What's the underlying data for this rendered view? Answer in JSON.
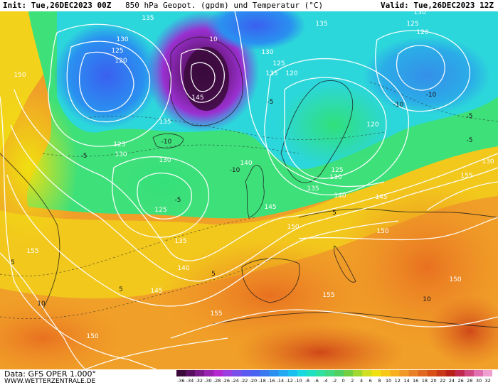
{
  "header": {
    "init": "Init: Tue,26DEC2023 00Z",
    "title": "850 hPa Geopot. (gpdm) und Temperatur (°C)",
    "valid": "Valid: Tue,26DEC2023 12Z"
  },
  "footer": {
    "data_source": "Data: GFS OPER 1.000°",
    "site": "WWW.WETTERZENTRALE.DE"
  },
  "colorbar": {
    "ticks": [
      "-36",
      "-34",
      "-32",
      "-30",
      "-28",
      "-26",
      "-24",
      "-22",
      "-20",
      "-18",
      "-16",
      "-14",
      "-12",
      "-10",
      "-8",
      "-6",
      "-4",
      "-2",
      "0",
      "2",
      "4",
      "6",
      "8",
      "10",
      "12",
      "14",
      "16",
      "18",
      "20",
      "22",
      "24",
      "26",
      "28",
      "30",
      "32"
    ],
    "colors": [
      "#3a0a3a",
      "#5a1060",
      "#7a1a8a",
      "#9a22b0",
      "#b428d0",
      "#9a3ee0",
      "#7a4ee8",
      "#5a58f0",
      "#4a62f0",
      "#3a78f0",
      "#2a90f0",
      "#20a8f0",
      "#18c0f0",
      "#18d8e0",
      "#20e0c0",
      "#30e0a0",
      "#40d880",
      "#50d060",
      "#70d040",
      "#a0d830",
      "#d0e020",
      "#f0e010",
      "#f8c818",
      "#f8b020",
      "#f09828",
      "#e88028",
      "#e06820",
      "#d85018",
      "#c83818",
      "#b82018",
      "#c02850",
      "#d04880",
      "#e070b0",
      "#f0a0d0"
    ]
  },
  "map": {
    "geopotential_labels": [
      {
        "text": "135"
      },
      {
        "text": "130"
      },
      {
        "text": "125"
      },
      {
        "text": "120"
      },
      {
        "text": "150"
      },
      {
        "text": "10"
      },
      {
        "text": "145"
      },
      {
        "text": "135"
      },
      {
        "text": "130"
      },
      {
        "text": "125"
      },
      {
        "text": "125"
      },
      {
        "text": "130"
      },
      {
        "text": "130"
      },
      {
        "text": "140"
      },
      {
        "text": "125"
      },
      {
        "text": "135"
      },
      {
        "text": "140"
      },
      {
        "text": "145"
      },
      {
        "text": "145"
      },
      {
        "text": "155"
      },
      {
        "text": "150"
      },
      {
        "text": "155"
      },
      {
        "text": "150"
      },
      {
        "text": "150"
      },
      {
        "text": "150"
      },
      {
        "text": "155"
      },
      {
        "text": "155"
      },
      {
        "text": "145"
      },
      {
        "text": "140"
      },
      {
        "text": "135"
      },
      {
        "text": "130"
      },
      {
        "text": "125"
      },
      {
        "text": "135"
      },
      {
        "text": "130"
      },
      {
        "text": "125"
      },
      {
        "text": "120"
      },
      {
        "text": "120"
      },
      {
        "text": "120"
      },
      {
        "text": "130"
      },
      {
        "text": "135"
      }
    ],
    "temperature_labels": [
      {
        "text": "-10"
      },
      {
        "text": "-10"
      },
      {
        "text": "-5"
      },
      {
        "text": "-5"
      },
      {
        "text": "-10"
      },
      {
        "text": "-5"
      },
      {
        "text": "-10"
      },
      {
        "text": "-5"
      },
      {
        "text": "5"
      },
      {
        "text": "5"
      },
      {
        "text": "5"
      },
      {
        "text": "10"
      },
      {
        "text": "10"
      },
      {
        "text": "5"
      },
      {
        "text": "-5"
      }
    ]
  }
}
